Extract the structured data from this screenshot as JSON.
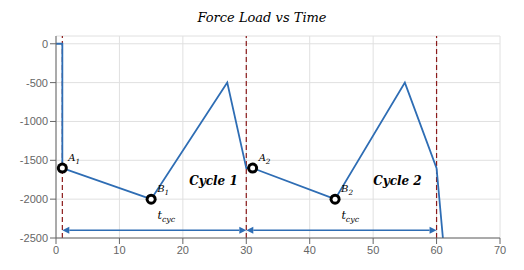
{
  "chart_data": {
    "type": "line",
    "title": "Force Load vs Time",
    "x": [
      0,
      1,
      1,
      15,
      27,
      30,
      31,
      44,
      55,
      60,
      61
    ],
    "values": [
      0,
      0,
      -1600,
      -2000,
      -500,
      -1600,
      -1600,
      -2000,
      -500,
      -1600,
      -2500
    ],
    "color": "#2E6DB4",
    "xlim": [
      0,
      70
    ],
    "ylim": [
      -2500,
      100
    ],
    "xticks": [
      0,
      10,
      20,
      30,
      40,
      50,
      60,
      70
    ],
    "yticks": [
      0,
      -500,
      -1000,
      -1500,
      -2000,
      -2500
    ],
    "grid": true,
    "vertical_lines": {
      "x": [
        1,
        30,
        60
      ],
      "color": "#8B1A1A",
      "line_style": "dashed"
    },
    "points": [
      {
        "label": "A",
        "subscript": "1",
        "x": 1,
        "y": -1600
      },
      {
        "label": "B",
        "subscript": "1",
        "x": 15,
        "y": -2000
      },
      {
        "label": "A",
        "subscript": "2",
        "x": 31,
        "y": -1600
      },
      {
        "label": "B",
        "subscript": "2",
        "x": 44,
        "y": -2000
      }
    ],
    "arrows": {
      "color": "#2E6DB4",
      "items": [
        {
          "x1": 1,
          "x2": 30,
          "y": -2400
        },
        {
          "x1": 30,
          "x2": 60,
          "y": -2400
        }
      ]
    },
    "annotations": [
      {
        "text": "Cycle 1",
        "x": 21,
        "y": -1820
      },
      {
        "text": "Cycle 2",
        "x": 50,
        "y": -1820
      },
      {
        "text": "t",
        "subscript": "cyc",
        "x": 16,
        "y": -2260
      },
      {
        "text": "t",
        "subscript": "cyc",
        "x": 45,
        "y": -2260
      }
    ]
  }
}
